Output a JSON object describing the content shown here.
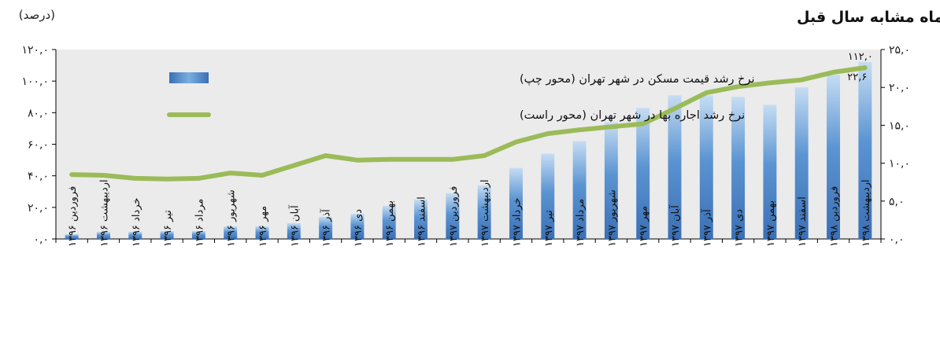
{
  "chart_data": {
    "type": "bar",
    "title": "روند رشد ماهانه قیمت مسکن و اجاره‌بها در شهر تهران نسبت به ماه مشابه سال قبل",
    "unit_label": "(درصد)",
    "categories": [
      "فروردین ۱۳۹۶",
      "اردیبهشت ۱۳۹۶",
      "خرداد ۱۳۹۶",
      "تیر ۱۳۹۶",
      "مرداد ۱۳۹۶",
      "شهریور ۱۳۹۶",
      "مهر ۱۳۹۶",
      "آبان ۱۳۹۶",
      "آذر ۱۳۹۶",
      "دی ۱۳۹۶",
      "بهمن ۱۳۹۶",
      "اسفند ۱۳۹۶",
      "فروردین ۱۳۹۷",
      "اردیبهشت ۱۳۹۷",
      "خرداد ۱۳۹۷",
      "تیر ۱۳۹۷",
      "مرداد ۱۳۹۷",
      "شهریور ۱۳۹۷",
      "مهر ۱۳۹۷",
      "آبان ۱۳۹۷",
      "آذر ۱۳۹۷",
      "دی ۱۳۹۷",
      "بهمن ۱۳۹۷",
      "اسفند ۱۳۹۷",
      "فروردین ۱۳۹۸",
      "اردیبهشت ۱۳۹۸"
    ],
    "series": [
      {
        "name": "نرخ رشد قیمت مسکن در شهر تهران (محور چپ)",
        "kind": "bar",
        "axis": "left",
        "color": "#4f81bd",
        "values": [
          3,
          4.5,
          4.5,
          5,
          5,
          8,
          8,
          10,
          14,
          16,
          21,
          25,
          29,
          34,
          45,
          54,
          62,
          74,
          83,
          91,
          91,
          90,
          85,
          96,
          104,
          112
        ]
      },
      {
        "name": "نرخ رشد اجاره بها در شهر تهران (محور راست)",
        "kind": "line",
        "axis": "right",
        "color": "#9bbb59",
        "values": [
          8.5,
          8.4,
          8.0,
          7.9,
          8.0,
          8.7,
          8.4,
          9.7,
          11.0,
          10.4,
          10.5,
          10.5,
          10.5,
          11.0,
          12.8,
          13.9,
          14.4,
          14.8,
          15.2,
          17.2,
          19.3,
          20.1,
          20.6,
          21.0,
          22.0,
          22.6
        ]
      }
    ],
    "y_left": {
      "min": 0,
      "max": 120,
      "step": 20,
      "tick_labels": [
        "۰,۰",
        "۲۰,۰",
        "۴۰,۰",
        "۶۰,۰",
        "۸۰,۰",
        "۱۰۰,۰",
        "۱۲۰,۰"
      ]
    },
    "y_right": {
      "min": 0,
      "max": 25,
      "step": 5,
      "tick_labels": [
        "۰,۰",
        "۵,۰",
        "۱۰,۰",
        "۱۵,۰",
        "۲۰,۰",
        "۲۵,۰"
      ]
    },
    "data_labels": [
      {
        "series": 0,
        "index": 25,
        "text": "۱۱۲,۰"
      },
      {
        "series": 1,
        "index": 25,
        "text": "۲۲,۶"
      }
    ],
    "legend": {
      "placement": "top-left inside plot",
      "items": [
        {
          "label": "نرخ رشد قیمت مسکن در شهر تهران (محور چپ)",
          "swatch": "bar",
          "color": "#4f81bd"
        },
        {
          "label": "نرخ رشد اجاره بها در شهر تهران (محور راست)",
          "swatch": "line",
          "color": "#9bbb59"
        }
      ]
    },
    "grid": false,
    "plot_background": "#ebebeb"
  }
}
